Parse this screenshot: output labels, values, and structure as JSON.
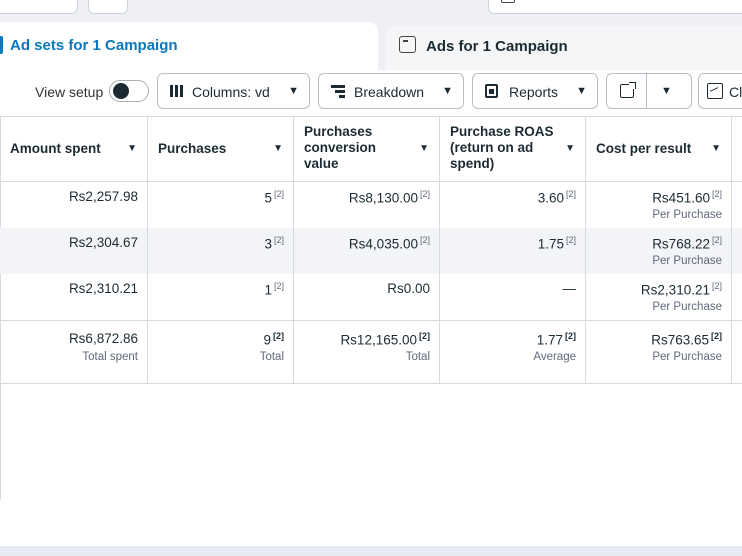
{
  "tabs": {
    "active": "Ad sets for 1 Campaign",
    "inactive": "Ads for 1 Campaign"
  },
  "toolbar": {
    "view_setup": "View setup",
    "columns": "Columns: vd",
    "breakdown": "Breakdown",
    "reports": "Reports",
    "chart_partial": "Cl"
  },
  "table": {
    "headers": [
      "Amount spent",
      "Purchases",
      "Purchases conversion value",
      "Purchase ROAS (return on ad spend)",
      "Cost per result"
    ],
    "rows": [
      {
        "amount_spent": "Rs2,257.98",
        "purchases": "5",
        "conversion_value": "Rs8,130.00",
        "roas": "3.60",
        "cost_per_result": "Rs451.60",
        "cost_sub": "Per Purchase",
        "note": "[2]"
      },
      {
        "amount_spent": "Rs2,304.67",
        "purchases": "3",
        "conversion_value": "Rs4,035.00",
        "roas": "1.75",
        "cost_per_result": "Rs768.22",
        "cost_sub": "Per Purchase",
        "note": "[2]"
      },
      {
        "amount_spent": "Rs2,310.21",
        "purchases": "1",
        "conversion_value": "Rs0.00",
        "roas": "—",
        "cost_per_result": "Rs2,310.21",
        "cost_sub": "Per Purchase",
        "note": "[2]"
      }
    ],
    "totals": {
      "amount_spent": "Rs6,872.86",
      "amount_spent_sub": "Total spent",
      "purchases": "9",
      "purchases_sub": "Total",
      "conversion_value": "Rs12,165.00",
      "conversion_value_sub": "Total",
      "roas": "1.77",
      "roas_sub": "Average",
      "cost_per_result": "Rs763.65",
      "cost_sub": "Per Purchase",
      "note": "[2]"
    }
  },
  "colors": {
    "accent": "#0a78be",
    "text": "#1c2b33",
    "muted": "#60697a",
    "border": "#d6dbe0",
    "row_alt": "#f2f4f7"
  }
}
